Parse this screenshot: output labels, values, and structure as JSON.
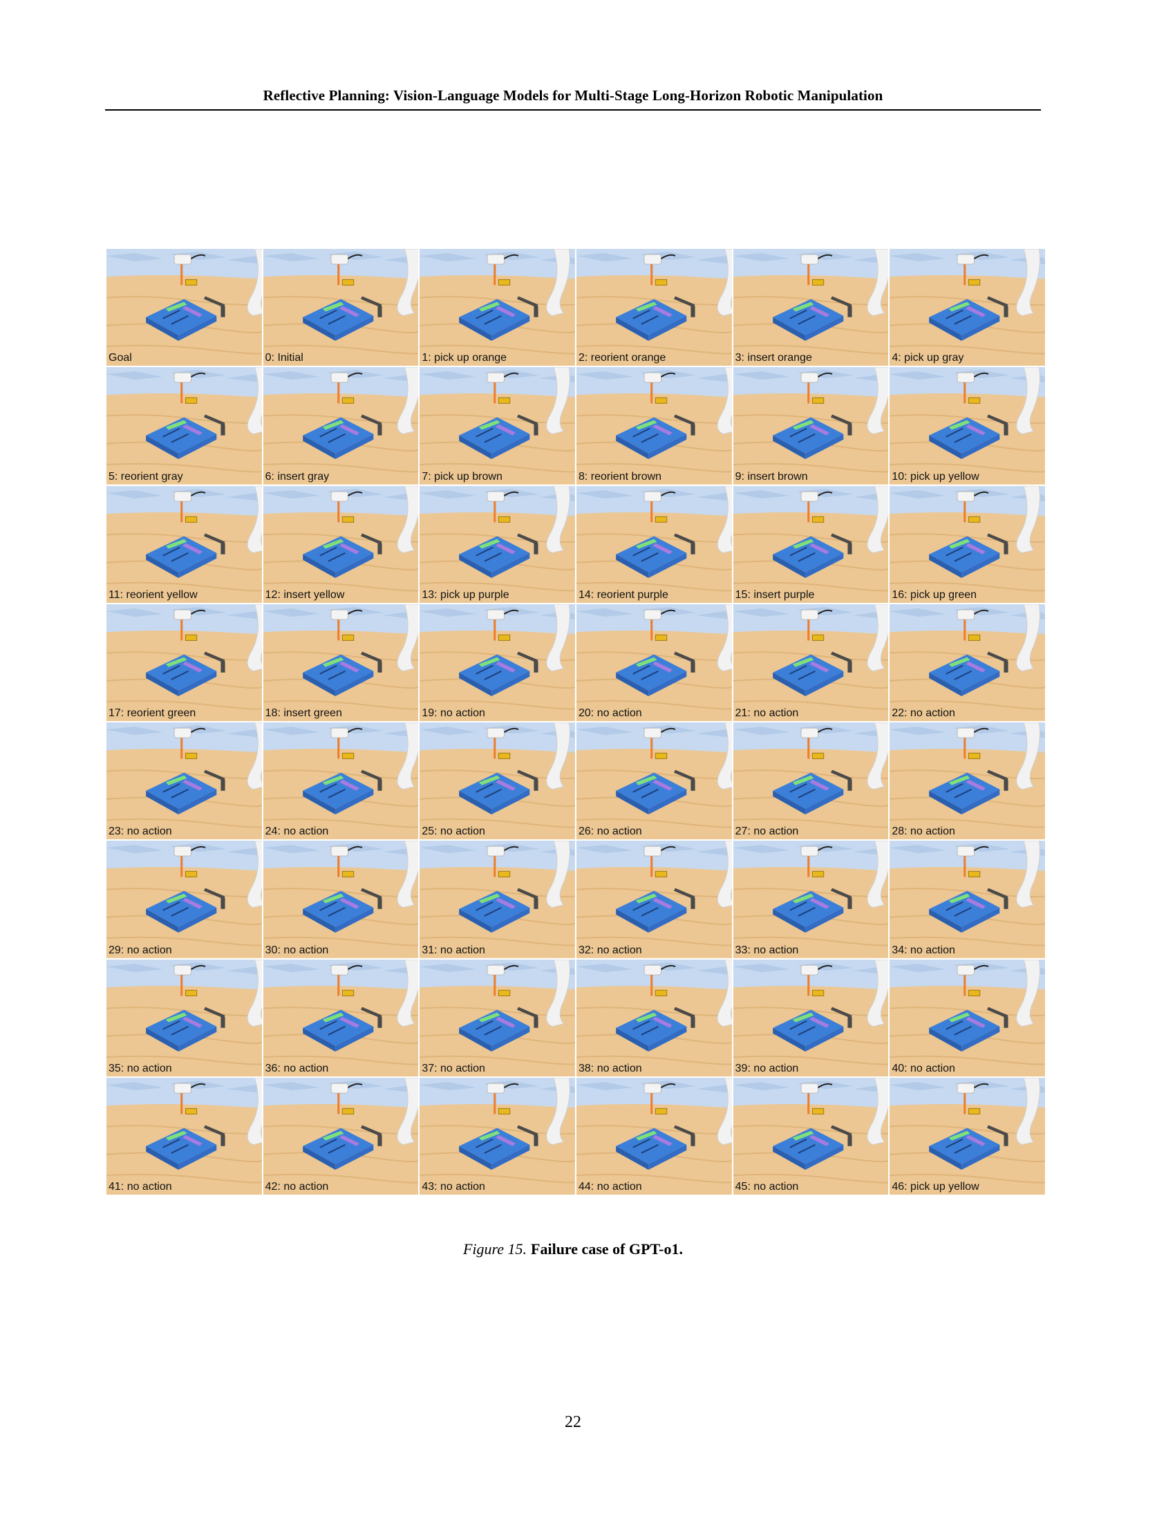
{
  "header": {
    "title": "Reflective Planning: Vision-Language Models for Multi-Stage Long-Horizon Robotic Manipulation"
  },
  "figure": {
    "number": "Figure 15.",
    "caption": "Failure case of GPT-o1.",
    "colors": {
      "board": "#3b7fd9",
      "purple": "#a77be0",
      "green": "#7fe07a",
      "orange": "#ef7c2a",
      "yellow": "#e8b81c",
      "gray": "#4a4a4a",
      "brown": "#8a5a36"
    },
    "frames": [
      {
        "label": "Goal"
      },
      {
        "label": "0: Initial"
      },
      {
        "label": "1: pick up orange"
      },
      {
        "label": "2: reorient orange"
      },
      {
        "label": "3: insert orange"
      },
      {
        "label": "4: pick up gray"
      },
      {
        "label": "5: reorient gray"
      },
      {
        "label": "6: insert gray"
      },
      {
        "label": "7: pick up brown"
      },
      {
        "label": "8: reorient brown"
      },
      {
        "label": "9: insert brown"
      },
      {
        "label": "10: pick up yellow"
      },
      {
        "label": "11: reorient yellow"
      },
      {
        "label": "12: insert yellow"
      },
      {
        "label": "13: pick up purple"
      },
      {
        "label": "14: reorient purple"
      },
      {
        "label": "15: insert purple"
      },
      {
        "label": "16: pick up green"
      },
      {
        "label": "17: reorient green"
      },
      {
        "label": "18: insert green"
      },
      {
        "label": "19: no action"
      },
      {
        "label": "20: no action"
      },
      {
        "label": "21: no action"
      },
      {
        "label": "22: no action"
      },
      {
        "label": "23: no action"
      },
      {
        "label": "24: no action"
      },
      {
        "label": "25: no action"
      },
      {
        "label": "26: no action"
      },
      {
        "label": "27: no action"
      },
      {
        "label": "28: no action"
      },
      {
        "label": "29: no action"
      },
      {
        "label": "30: no action"
      },
      {
        "label": "31: no action"
      },
      {
        "label": "32: no action"
      },
      {
        "label": "33: no action"
      },
      {
        "label": "34: no action"
      },
      {
        "label": "35: no action"
      },
      {
        "label": "36: no action"
      },
      {
        "label": "37: no action"
      },
      {
        "label": "38: no action"
      },
      {
        "label": "39: no action"
      },
      {
        "label": "40: no action"
      },
      {
        "label": "41: no action"
      },
      {
        "label": "42: no action"
      },
      {
        "label": "43: no action"
      },
      {
        "label": "44: no action"
      },
      {
        "label": "45: no action"
      },
      {
        "label": "46: pick up yellow"
      }
    ]
  },
  "page_number": "22"
}
